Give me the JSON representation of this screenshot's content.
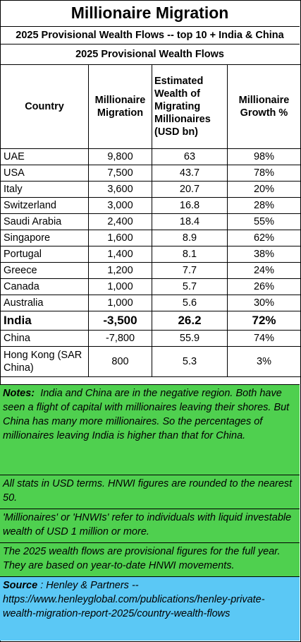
{
  "title": "Millionaire Migration",
  "subtitle": "2025 Provisional Wealth Flows -- top 10 + India & China",
  "section_title": "2025 Provisional Wealth Flows",
  "columns": [
    "Country",
    "Millionaire Migration",
    "Estimated Wealth of Migrating Millionaires (USD bn)",
    "Millionaire Growth %"
  ],
  "rows": [
    {
      "country": "UAE",
      "migration": "9,800",
      "wealth": "63",
      "growth": "98%"
    },
    {
      "country": "USA",
      "migration": "7,500",
      "wealth": "43.7",
      "growth": "78%"
    },
    {
      "country": "Italy",
      "migration": "3,600",
      "wealth": "20.7",
      "growth": "20%"
    },
    {
      "country": "Switzerland",
      "migration": "3,000",
      "wealth": "16.8",
      "growth": "28%"
    },
    {
      "country": "Saudi Arabia",
      "migration": "2,400",
      "wealth": "18.4",
      "growth": "55%"
    },
    {
      "country": "Singapore",
      "migration": "1,600",
      "wealth": "8.9",
      "growth": "62%"
    },
    {
      "country": "Portugal",
      "migration": "1,400",
      "wealth": "8.1",
      "growth": "38%"
    },
    {
      "country": "Greece",
      "migration": "1,200",
      "wealth": "7.7",
      "growth": "24%"
    },
    {
      "country": "Canada",
      "migration": "1,000",
      "wealth": "5.7",
      "growth": "26%"
    },
    {
      "country": "Australia",
      "migration": "1,000",
      "wealth": "5.6",
      "growth": "30%"
    },
    {
      "country": "India",
      "migration": "-3,500",
      "wealth": "26.2",
      "growth": "72%"
    },
    {
      "country": "China",
      "migration": "-7,800",
      "wealth": "55.9",
      "growth": "74%"
    },
    {
      "country": "Hong Kong (SAR China)",
      "migration": "800",
      "wealth": "5.3",
      "growth": "3%"
    }
  ],
  "notes": {
    "label": "Notes:",
    "text": "India and China are in the negative region.  Both have seen a flight of capital with millionaires leaving their shores.  But China has many more millionaires.  So the percentages of millionaires leaving India is higher than that for China.",
    "stats": "All stats in USD terms. HNWI figures are rounded to the nearest 50.",
    "definition": "'Millionaires' or 'HNWIs' refer to individuals with liquid investable wealth of USD 1 million or more.",
    "provisional": "The 2025 wealth flows are provisional figures for the full year. They are based on year-to-date HNWI movements."
  },
  "source": {
    "label": "Source",
    "text": ": Henley & Partners -- https://www.henleyglobal.com/publications/henley-private-wealth-migration-report-2025/country-wealth-flows"
  }
}
